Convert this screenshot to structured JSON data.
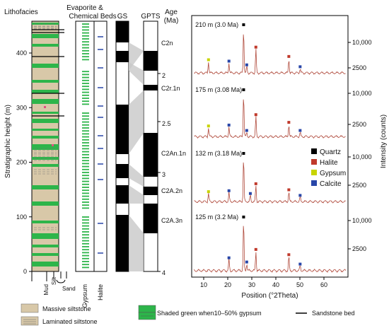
{
  "headers": {
    "lithofacies": "Lithofacies",
    "evaporite_line1": "Evaporite &",
    "evaporite_line2": "Chemical Beds",
    "gs": "GS",
    "gpts": "GPTS",
    "age_line1": "Age",
    "age_line2": "(Ma)"
  },
  "strat_axis": {
    "label": "Stratigraphic height (m)",
    "ticks": [
      0,
      100,
      200,
      300,
      400
    ]
  },
  "column_labels": {
    "mud": "Mud",
    "silt": "Silt",
    "sand": "Sand",
    "gypsum": "Gypsum",
    "halite": "Halite"
  },
  "gpts": {
    "chron_labels": [
      "C2n",
      "C2r.1n",
      "C2An.1n",
      "C2A.2n",
      "C2A.3n"
    ],
    "age_ticks": [
      "2",
      "2.5",
      "3",
      "4"
    ]
  },
  "colors": {
    "massive_siltstone": "#d8c8a8",
    "gypsum_green": "#2db54a",
    "quartz": "#000000",
    "halite": "#c0392b",
    "gypsum": "#c8d400",
    "calcite": "#2846a8",
    "xrd_line": "#b04a3c"
  },
  "legend": {
    "massive": "Massive siltstone",
    "laminated": "Laminated siltstone",
    "shaded": "Shaded green when10–50% gypsum",
    "sandstone": "Sandstone bed"
  },
  "chart_data": {
    "type": "line",
    "xlabel": "Position (°2Theta)",
    "ylabel": "Intensity (counts)",
    "x_ticks": [
      10,
      20,
      30,
      40,
      50,
      60
    ],
    "xlim": [
      5,
      70
    ],
    "y_tick_labels": [
      "10,000",
      "2500"
    ],
    "series": [
      {
        "name": "210 m (3.0 Ma)",
        "peaks": [
          [
            12,
            25
          ],
          [
            20.5,
            22
          ],
          [
            26.6,
            100
          ],
          [
            31.7,
            52
          ],
          [
            45.4,
            32
          ],
          [
            50.1,
            10
          ],
          [
            27.9,
            14
          ]
        ]
      },
      {
        "name": "175 m (3.08 Ma)",
        "peaks": [
          [
            12,
            20
          ],
          [
            20.5,
            22
          ],
          [
            26.6,
            100
          ],
          [
            31.7,
            45
          ],
          [
            45.4,
            28
          ],
          [
            50.1,
            10
          ],
          [
            27.9,
            10
          ]
        ]
      },
      {
        "name": "132 m (3.18 Ma)",
        "peaks": [
          [
            12,
            18
          ],
          [
            20.5,
            20
          ],
          [
            26.6,
            100
          ],
          [
            31.7,
            35
          ],
          [
            45.4,
            22
          ],
          [
            50.1,
            10
          ],
          [
            29.4,
            14
          ]
        ]
      },
      {
        "name": "125 m (3.2 Ma)",
        "peaks": [
          [
            20.5,
            22
          ],
          [
            26.6,
            100
          ],
          [
            31.7,
            38
          ],
          [
            45.4,
            28
          ],
          [
            50.1,
            10
          ],
          [
            27.9,
            14
          ]
        ]
      }
    ],
    "legend": [
      "Quartz",
      "Halite",
      "Gypsum",
      "Calcite"
    ]
  }
}
